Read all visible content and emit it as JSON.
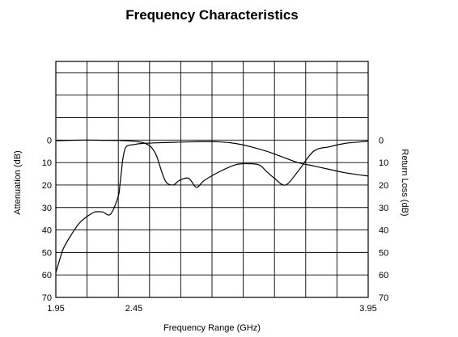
{
  "chart_data": {
    "type": "line",
    "title": "Frequency Characteristics",
    "xlabel": "Frequency Range (GHz)",
    "ylabel_left": "Attenuation (dB)",
    "ylabel_right": "Return Loss (dB)",
    "xlim": [
      1.95,
      3.95
    ],
    "ylim": [
      70,
      -35
    ],
    "y_reversed": true,
    "grid": true,
    "x_tick_labels": [
      {
        "value": 1.95,
        "label": "1.95"
      },
      {
        "value": 2.45,
        "label": "2.45"
      },
      {
        "value": 3.95,
        "label": "3.95"
      }
    ],
    "y_tick_labels_left": [
      {
        "value": 0,
        "label": "0"
      },
      {
        "value": 10,
        "label": "10"
      },
      {
        "value": 20,
        "label": "20"
      },
      {
        "value": 30,
        "label": "30"
      },
      {
        "value": 40,
        "label": "40"
      },
      {
        "value": 50,
        "label": "50"
      },
      {
        "value": 60,
        "label": "60"
      },
      {
        "value": 70,
        "label": "70"
      }
    ],
    "y_tick_labels_right": [
      {
        "value": 0,
        "label": "0"
      },
      {
        "value": 10,
        "label": "10"
      },
      {
        "value": 20,
        "label": "20"
      },
      {
        "value": 30,
        "label": "30"
      },
      {
        "value": 40,
        "label": "40"
      },
      {
        "value": 50,
        "label": "50"
      },
      {
        "value": 60,
        "label": "60"
      },
      {
        "value": 70,
        "label": "70"
      }
    ],
    "series": [
      {
        "axis": "left",
        "x": [
          1.95,
          1.98,
          2.0,
          2.05,
          2.1,
          2.15,
          2.2,
          2.25,
          2.3,
          2.35,
          2.36,
          2.37,
          2.38,
          2.4,
          2.45,
          2.5,
          2.6,
          2.7,
          2.8,
          2.9,
          3.0,
          3.1,
          3.2,
          3.3,
          3.4,
          3.5,
          3.6,
          3.7,
          3.8,
          3.95
        ],
        "values": [
          59,
          52,
          48,
          42,
          37,
          34,
          32,
          32,
          33,
          25,
          20,
          14,
          8,
          3,
          2,
          1.5,
          1.2,
          1.0,
          0.8,
          0.7,
          0.8,
          1.5,
          3,
          5,
          7.5,
          10,
          11.5,
          13,
          14.5,
          16
        ]
      },
      {
        "axis": "right",
        "x": [
          1.95,
          2.05,
          2.15,
          2.25,
          2.4,
          2.5,
          2.55,
          2.58,
          2.6,
          2.65,
          2.7,
          2.74,
          2.8,
          2.85,
          2.9,
          3.0,
          3.1,
          3.17,
          3.25,
          3.3,
          3.35,
          3.42,
          3.5,
          3.6,
          3.7,
          3.8,
          3.9,
          3.95
        ],
        "values": [
          0.3,
          0.1,
          0,
          0.1,
          0.3,
          1.0,
          2.5,
          5,
          8,
          18,
          20,
          18,
          17,
          21,
          18,
          14,
          11,
          10.5,
          11,
          14,
          17,
          20,
          14,
          5,
          3,
          1.5,
          0.8,
          0.5
        ]
      }
    ]
  }
}
